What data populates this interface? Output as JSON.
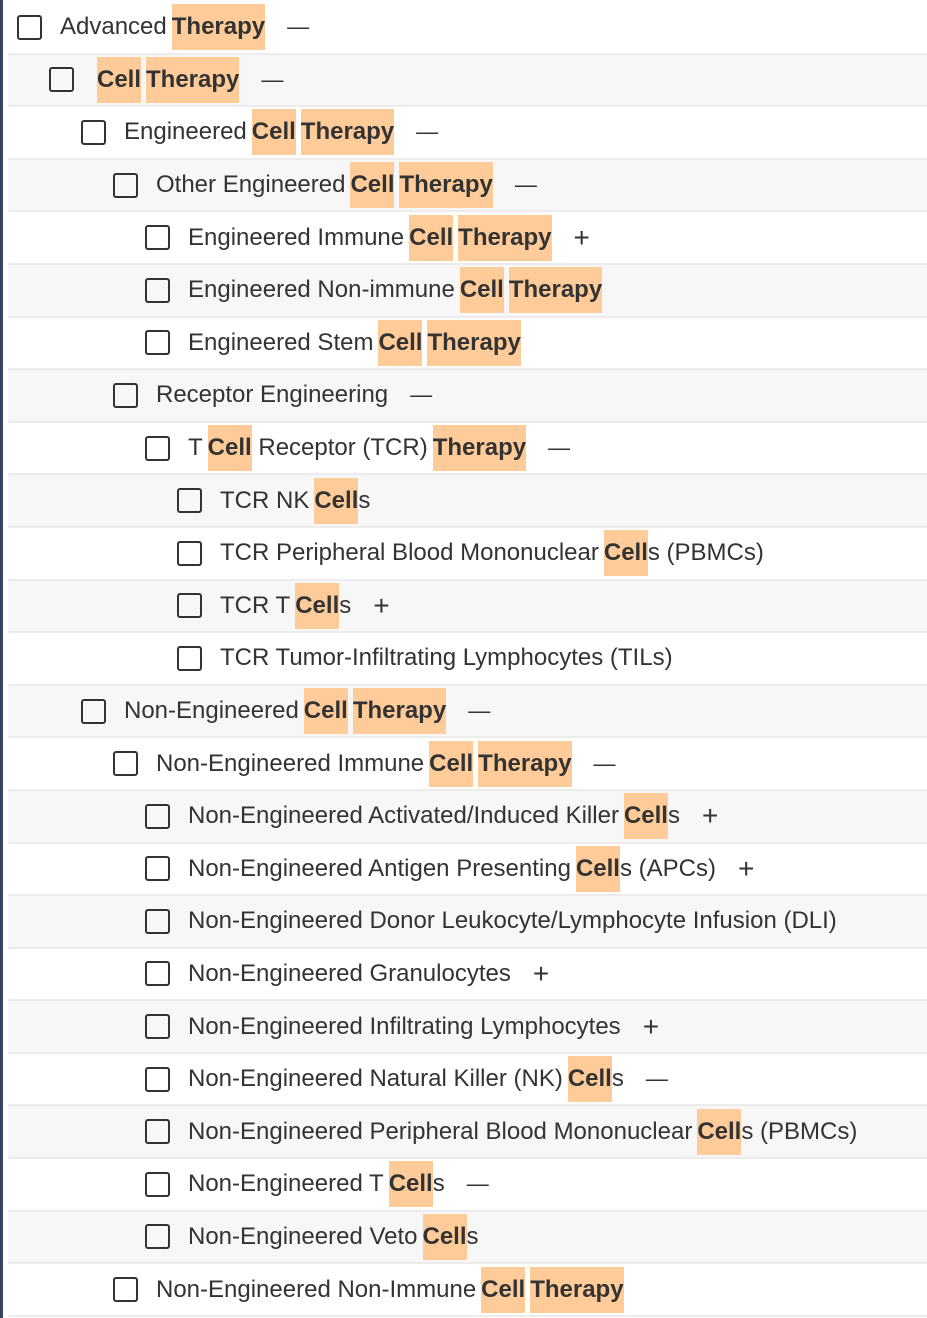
{
  "highlight_color": "#ffcc99",
  "rows": [
    {
      "level": 0,
      "toggle": "minus",
      "segments": [
        {
          "t": "Advanced"
        },
        {
          "t": "Therapy",
          "hl": true
        }
      ]
    },
    {
      "level": 1,
      "toggle": "minus",
      "segments": [
        {
          "t": "Cell",
          "hl": true
        },
        {
          "t": "Therapy",
          "hl": true
        }
      ]
    },
    {
      "level": 2,
      "toggle": "minus",
      "segments": [
        {
          "t": "Engineered"
        },
        {
          "t": "Cell",
          "hl": true
        },
        {
          "t": "Therapy",
          "hl": true
        }
      ]
    },
    {
      "level": 3,
      "toggle": "minus",
      "segments": [
        {
          "t": "Other Engineered"
        },
        {
          "t": "Cell",
          "hl": true
        },
        {
          "t": "Therapy",
          "hl": true
        }
      ]
    },
    {
      "level": 4,
      "toggle": "plus",
      "segments": [
        {
          "t": "Engineered Immune"
        },
        {
          "t": "Cell",
          "hl": true
        },
        {
          "t": "Therapy",
          "hl": true
        }
      ]
    },
    {
      "level": 4,
      "toggle": "",
      "segments": [
        {
          "t": "Engineered Non-immune"
        },
        {
          "t": "Cell",
          "hl": true
        },
        {
          "t": "Therapy",
          "hl": true
        }
      ]
    },
    {
      "level": 4,
      "toggle": "",
      "segments": [
        {
          "t": "Engineered Stem"
        },
        {
          "t": "Cell",
          "hl": true
        },
        {
          "t": "Therapy",
          "hl": true
        }
      ]
    },
    {
      "level": 3,
      "toggle": "minus",
      "segments": [
        {
          "t": "Receptor Engineering"
        }
      ]
    },
    {
      "level": 4,
      "toggle": "minus",
      "segments": [
        {
          "t": "T"
        },
        {
          "t": "Cell",
          "hl": true
        },
        {
          "t": " Receptor (TCR)"
        },
        {
          "t": "Therapy",
          "hl": true
        }
      ]
    },
    {
      "level": 5,
      "toggle": "",
      "segments": [
        {
          "t": "TCR NK"
        },
        {
          "t": "Cell",
          "hl": true
        },
        {
          "t": "s"
        }
      ]
    },
    {
      "level": 5,
      "toggle": "",
      "segments": [
        {
          "t": "TCR Peripheral Blood Mononuclear"
        },
        {
          "t": "Cell",
          "hl": true
        },
        {
          "t": "s (PBMCs)"
        }
      ]
    },
    {
      "level": 5,
      "toggle": "plus",
      "segments": [
        {
          "t": "TCR T"
        },
        {
          "t": "Cell",
          "hl": true
        },
        {
          "t": "s"
        }
      ]
    },
    {
      "level": 5,
      "toggle": "",
      "segments": [
        {
          "t": "TCR Tumor-Infiltrating Lymphocytes (TILs)"
        }
      ]
    },
    {
      "level": 2,
      "toggle": "minus",
      "segments": [
        {
          "t": "Non-Engineered"
        },
        {
          "t": "Cell",
          "hl": true
        },
        {
          "t": "Therapy",
          "hl": true
        }
      ]
    },
    {
      "level": 3,
      "toggle": "minus",
      "segments": [
        {
          "t": "Non-Engineered Immune"
        },
        {
          "t": "Cell",
          "hl": true
        },
        {
          "t": "Therapy",
          "hl": true
        }
      ]
    },
    {
      "level": 4,
      "toggle": "plus",
      "segments": [
        {
          "t": "Non-Engineered Activated/Induced Killer"
        },
        {
          "t": "Cell",
          "hl": true
        },
        {
          "t": "s"
        }
      ]
    },
    {
      "level": 4,
      "toggle": "plus",
      "segments": [
        {
          "t": "Non-Engineered Antigen Presenting"
        },
        {
          "t": "Cell",
          "hl": true
        },
        {
          "t": "s (APCs)"
        }
      ]
    },
    {
      "level": 4,
      "toggle": "",
      "segments": [
        {
          "t": "Non-Engineered Donor Leukocyte/Lymphocyte Infusion (DLI)"
        }
      ]
    },
    {
      "level": 4,
      "toggle": "plus",
      "segments": [
        {
          "t": "Non-Engineered Granulocytes"
        }
      ]
    },
    {
      "level": 4,
      "toggle": "plus",
      "segments": [
        {
          "t": "Non-Engineered Infiltrating Lymphocytes"
        }
      ]
    },
    {
      "level": 4,
      "toggle": "minus",
      "segments": [
        {
          "t": "Non-Engineered Natural Killer (NK)"
        },
        {
          "t": "Cell",
          "hl": true
        },
        {
          "t": "s"
        }
      ]
    },
    {
      "level": 4,
      "toggle": "",
      "segments": [
        {
          "t": "Non-Engineered Peripheral Blood Mononuclear"
        },
        {
          "t": "Cell",
          "hl": true
        },
        {
          "t": "s (PBMCs)"
        }
      ]
    },
    {
      "level": 4,
      "toggle": "minus",
      "segments": [
        {
          "t": "Non-Engineered T"
        },
        {
          "t": "Cell",
          "hl": true
        },
        {
          "t": "s"
        }
      ]
    },
    {
      "level": 4,
      "toggle": "",
      "segments": [
        {
          "t": "Non-Engineered Veto"
        },
        {
          "t": "Cell",
          "hl": true
        },
        {
          "t": "s"
        }
      ]
    },
    {
      "level": 3,
      "toggle": "",
      "segments": [
        {
          "t": "Non-Engineered Non-Immune"
        },
        {
          "t": "Cell",
          "hl": true
        },
        {
          "t": "Therapy",
          "hl": true
        }
      ]
    }
  ]
}
